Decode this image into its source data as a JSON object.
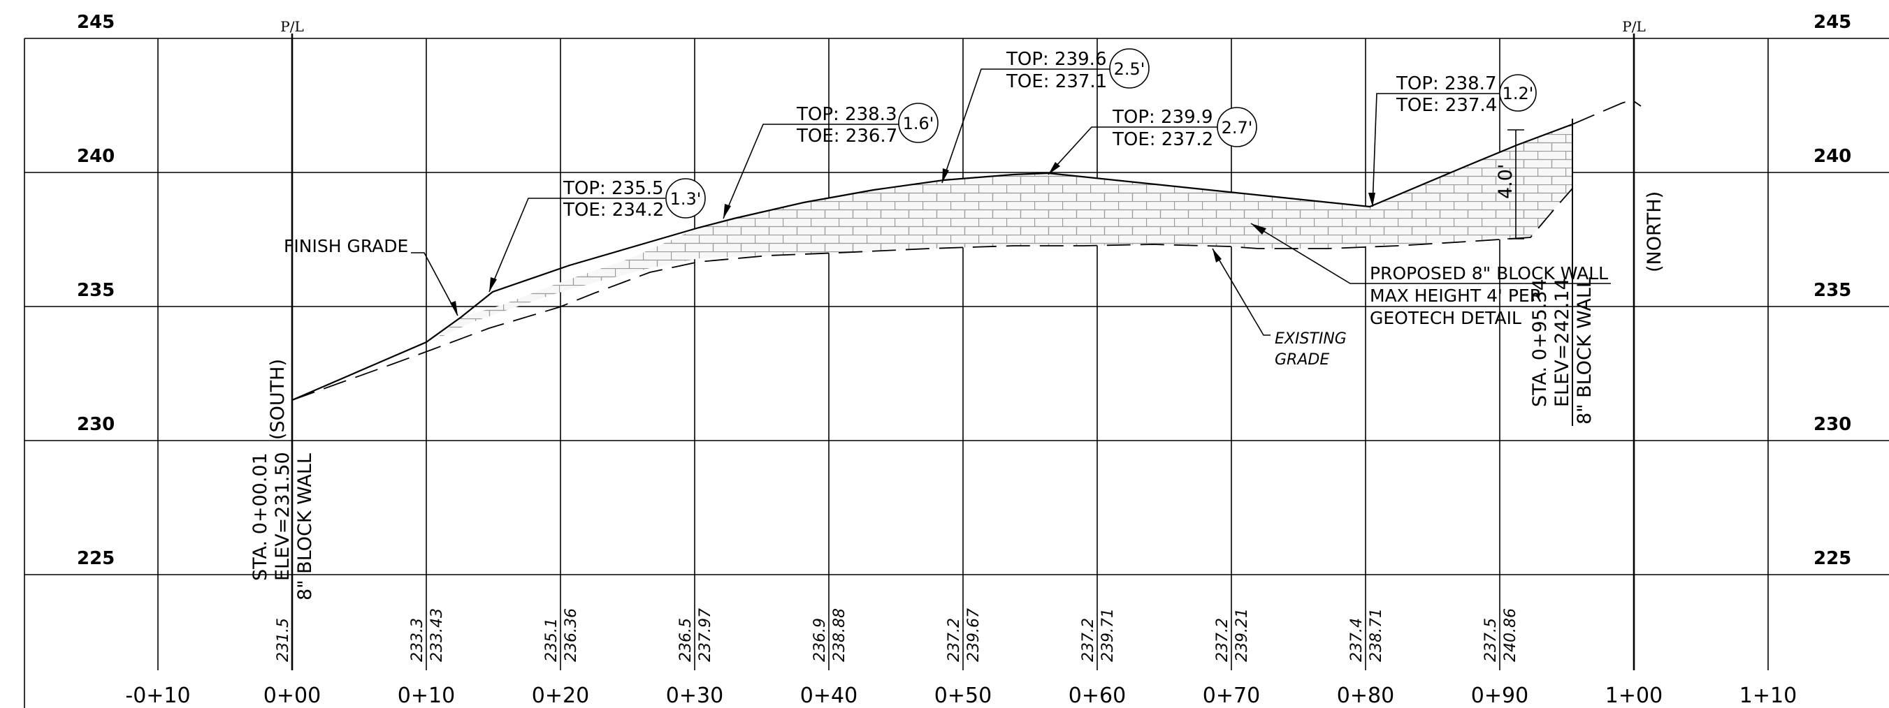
{
  "axes": {
    "elevation_labels": [
      "245",
      "240",
      "235",
      "230",
      "225"
    ],
    "station_labels": [
      "-0+10",
      "0+00",
      "0+10",
      "0+20",
      "0+30",
      "0+40",
      "0+50",
      "0+60",
      "0+70",
      "0+80",
      "0+90",
      "1+00",
      "1+10"
    ]
  },
  "property_lines": {
    "label": "P/L"
  },
  "directions": {
    "south": "(SOUTH)",
    "north": "(NORTH)"
  },
  "start_wall": {
    "line1": "STA. 0+00.01",
    "line2": "ELEV=231.50",
    "line3": "8\" BLOCK WALL"
  },
  "end_wall": {
    "line1": "STA. 0+95.34",
    "line2": "ELEV=242.14",
    "line3": "8\" BLOCK WALL"
  },
  "finish_grade_label": "FINISH GRADE",
  "existing_grade_label": {
    "line1": "EXISTING",
    "line2": "GRADE"
  },
  "wall_note": {
    "line1": "PROPOSED 8\" BLOCK WALL",
    "line2": "MAX HEIGHT 4' PER",
    "line3": "GEOTECH DETAIL"
  },
  "height_dim": "4.0'",
  "callouts": [
    {
      "top": "TOP: 235.5",
      "toe": "TOE: 234.2",
      "height": "1.3'"
    },
    {
      "top": "TOP: 238.3",
      "toe": "TOE: 236.7",
      "height": "1.6'"
    },
    {
      "top": "TOP: 239.6",
      "toe": "TOE: 237.1",
      "height": "2.5'"
    },
    {
      "top": "TOP: 239.9",
      "toe": "TOE: 237.2",
      "height": "2.7'"
    },
    {
      "top": "TOP: 238.7",
      "toe": "TOE: 237.4",
      "height": "1.2'"
    }
  ],
  "bottom_values": [
    {
      "existing": "231.5",
      "finish": ""
    },
    {
      "existing": "233.3",
      "finish": "233.43"
    },
    {
      "existing": "235.1",
      "finish": "236.36"
    },
    {
      "existing": "236.5",
      "finish": "237.97"
    },
    {
      "existing": "236.9",
      "finish": "238.88"
    },
    {
      "existing": "237.2",
      "finish": "239.67"
    },
    {
      "existing": "237.2",
      "finish": "239.71"
    },
    {
      "existing": "237.2",
      "finish": "239.21"
    },
    {
      "existing": "237.4",
      "finish": "238.71"
    },
    {
      "existing": "237.5",
      "finish": "240.86"
    }
  ]
}
